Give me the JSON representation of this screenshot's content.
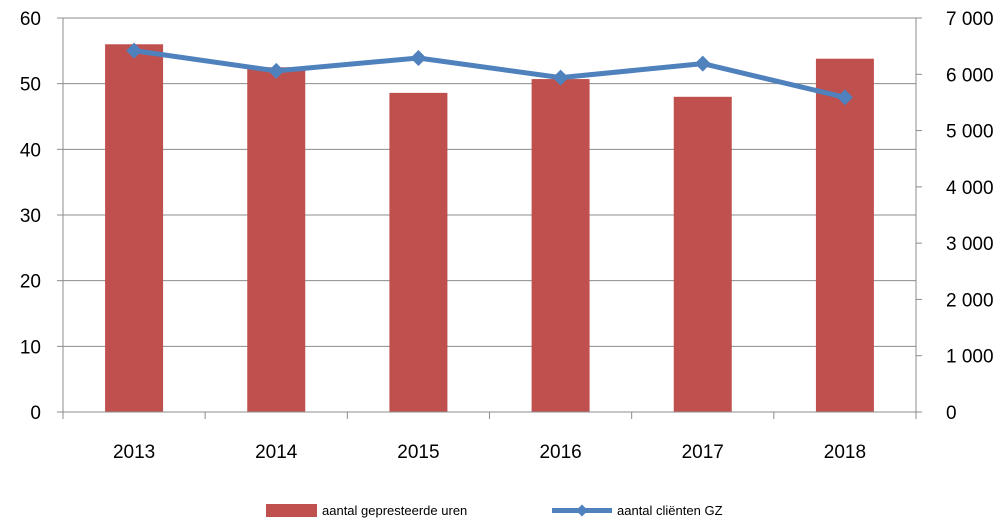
{
  "chart_data": {
    "type": "bar",
    "categories": [
      "2013",
      "2014",
      "2015",
      "2016",
      "2017",
      "2018"
    ],
    "series": [
      {
        "name": "aantal gepresteerde uren",
        "type": "bar",
        "axis": "left",
        "color": "#c0504d",
        "values": [
          56,
          52.5,
          48.6,
          50.7,
          48,
          53.8
        ]
      },
      {
        "name": "aantal cliënten GZ",
        "type": "line",
        "axis": "right",
        "color": "#4f81bd",
        "marker": "diamond",
        "values": [
          6420,
          6060,
          6290,
          5940,
          6190,
          5590
        ]
      }
    ],
    "y_left": {
      "ylim": [
        0,
        60
      ],
      "ticks": [
        0,
        10,
        20,
        30,
        40,
        50,
        60
      ],
      "tick_labels": [
        "0",
        "10",
        "20",
        "30",
        "40",
        "50",
        "60"
      ]
    },
    "y_right": {
      "ylim": [
        0,
        7000
      ],
      "ticks": [
        0,
        1000,
        2000,
        3000,
        4000,
        5000,
        6000,
        7000
      ],
      "tick_labels": [
        "0",
        "1 000",
        "2 000",
        "3 000",
        "4 000",
        "5 000",
        "6 000",
        "7 000"
      ]
    },
    "grid": true,
    "legend_position": "bottom"
  },
  "colors": {
    "bar": "#c0504d",
    "line": "#4f81bd",
    "grid": "#8c8c8c",
    "axis": "#8c8c8c"
  }
}
